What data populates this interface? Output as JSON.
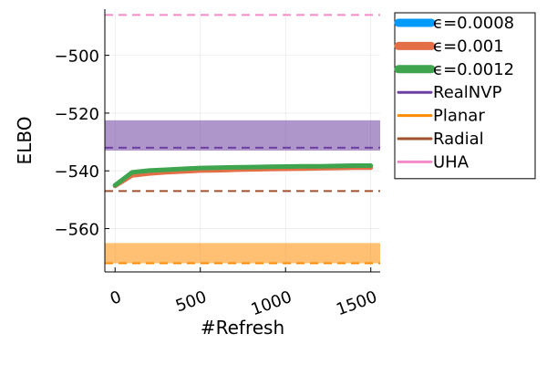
{
  "chart_data": {
    "type": "line",
    "title": "",
    "xlabel": "#Refresh",
    "ylabel": "ELBO",
    "xlim": [
      -60,
      1555
    ],
    "ylim": [
      -575,
      -484
    ],
    "xticks": [
      0,
      500,
      1000,
      1500
    ],
    "xtick_labels": [
      "0",
      "500",
      "1000",
      "1500"
    ],
    "yticks": [
      -500,
      -520,
      -540,
      -560
    ],
    "ytick_labels": [
      "−500",
      "−520",
      "−540",
      "−560"
    ],
    "grid": true,
    "legend_position": "outer-right-top",
    "series": [
      {
        "name": "ϵ=0.0008",
        "color": "#009AFA",
        "kind": "line",
        "x": [
          0,
          100,
          200,
          300,
          400,
          500,
          600,
          700,
          800,
          900,
          1000,
          1100,
          1200,
          1300,
          1400,
          1500
        ],
        "y": [
          -545.0,
          -541.0,
          -540.4,
          -540.0,
          -539.7,
          -539.4,
          -539.3,
          -539.2,
          -539.1,
          -539.0,
          -538.9,
          -538.8,
          -538.8,
          -538.7,
          -538.6,
          -538.5
        ]
      },
      {
        "name": "ϵ=0.001",
        "color": "#E36F47",
        "kind": "line",
        "x": [
          0,
          100,
          200,
          300,
          400,
          500,
          600,
          700,
          800,
          900,
          1000,
          1100,
          1200,
          1300,
          1400,
          1500
        ],
        "y": [
          -545.2,
          -541.6,
          -540.9,
          -540.5,
          -540.2,
          -539.9,
          -539.8,
          -539.6,
          -539.5,
          -539.4,
          -539.3,
          -539.2,
          -539.1,
          -539.0,
          -538.9,
          -538.9
        ]
      },
      {
        "name": "ϵ=0.0012",
        "color": "#3EA44E",
        "kind": "line",
        "x": [
          0,
          100,
          200,
          300,
          400,
          500,
          600,
          700,
          800,
          900,
          1000,
          1100,
          1200,
          1300,
          1400,
          1500
        ],
        "y": [
          -545.0,
          -540.5,
          -539.9,
          -539.6,
          -539.3,
          -539.0,
          -538.9,
          -538.8,
          -538.7,
          -538.6,
          -538.5,
          -538.4,
          -538.4,
          -538.3,
          -538.2,
          -538.2
        ]
      },
      {
        "name": "RealNVP",
        "color": "#6C3FA1",
        "kind": "reference",
        "y": -532,
        "band": [
          -533,
          -522.5
        ]
      },
      {
        "name": "Planar",
        "color": "#FF8C00",
        "kind": "reference",
        "y": -572,
        "band": [
          -572,
          -565
        ]
      },
      {
        "name": "Radial",
        "color": "#A0522D",
        "kind": "reference",
        "y": -547,
        "band": null
      },
      {
        "name": "UHA",
        "color": "#F28BC7",
        "kind": "reference",
        "y": -486,
        "band": null
      }
    ]
  }
}
